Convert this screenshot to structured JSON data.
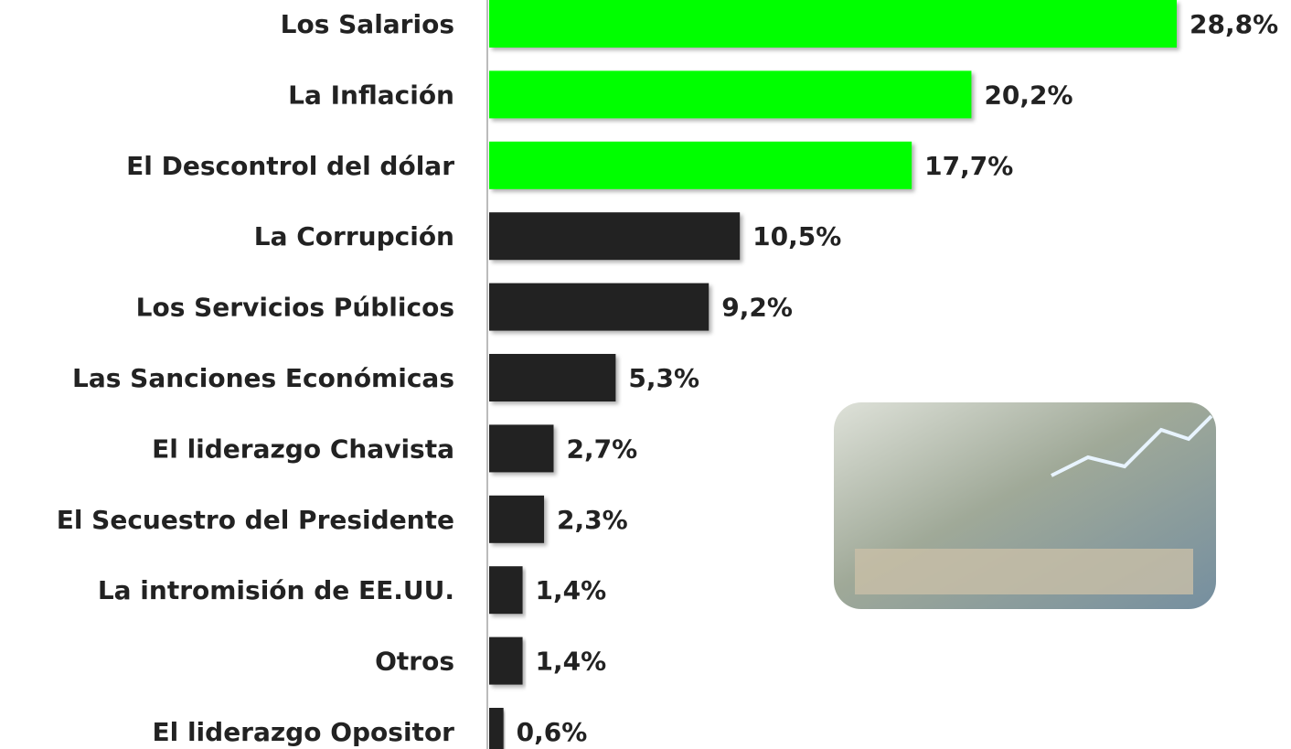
{
  "chart_data": {
    "type": "bar",
    "orientation": "horizontal",
    "categories": [
      "Los Salarios",
      "La Inflación",
      "El Descontrol del dólar",
      "La Corrupción",
      "Los Servicios Públicos",
      "Las Sanciones Económicas",
      "El liderazgo Chavista",
      "El Secuestro del Presidente",
      "La intromisión de EE.UU.",
      "Otros",
      "El liderazgo Opositor"
    ],
    "values": [
      28.8,
      20.2,
      17.7,
      10.5,
      9.2,
      5.3,
      2.7,
      2.3,
      1.4,
      1.4,
      0.6
    ],
    "value_labels": [
      "28,8%",
      "20,2%",
      "17,7%",
      "10,5%",
      "9,2%",
      "5,3%",
      "2,7%",
      "2,3%",
      "1,4%",
      "1,4%",
      "0,6%"
    ],
    "colors": [
      "#00ff00",
      "#00ff00",
      "#00ff00",
      "#222222",
      "#222222",
      "#222222",
      "#222222",
      "#222222",
      "#222222",
      "#222222",
      "#222222"
    ]
  }
}
